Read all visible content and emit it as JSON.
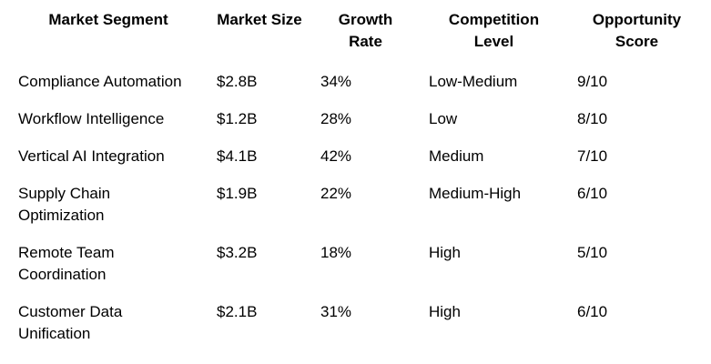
{
  "table": {
    "headers": [
      "Market Segment",
      "Market Size",
      "Growth Rate",
      "Competition Level",
      "Opportunity Score"
    ],
    "rows": [
      [
        "Compliance Automation",
        "$2.8B",
        "34%",
        "Low-Medium",
        "9/10"
      ],
      [
        "Workflow Intelligence",
        "$1.2B",
        "28%",
        "Low",
        "8/10"
      ],
      [
        "Vertical AI Integration",
        "$4.1B",
        "42%",
        "Medium",
        "7/10"
      ],
      [
        "Supply Chain Optimization",
        "$1.9B",
        "22%",
        "Medium-High",
        "6/10"
      ],
      [
        "Remote Team Coordination",
        "$3.2B",
        "18%",
        "High",
        "5/10"
      ],
      [
        "Customer Data Unification",
        "$2.1B",
        "31%",
        "High",
        "6/10"
      ]
    ]
  }
}
